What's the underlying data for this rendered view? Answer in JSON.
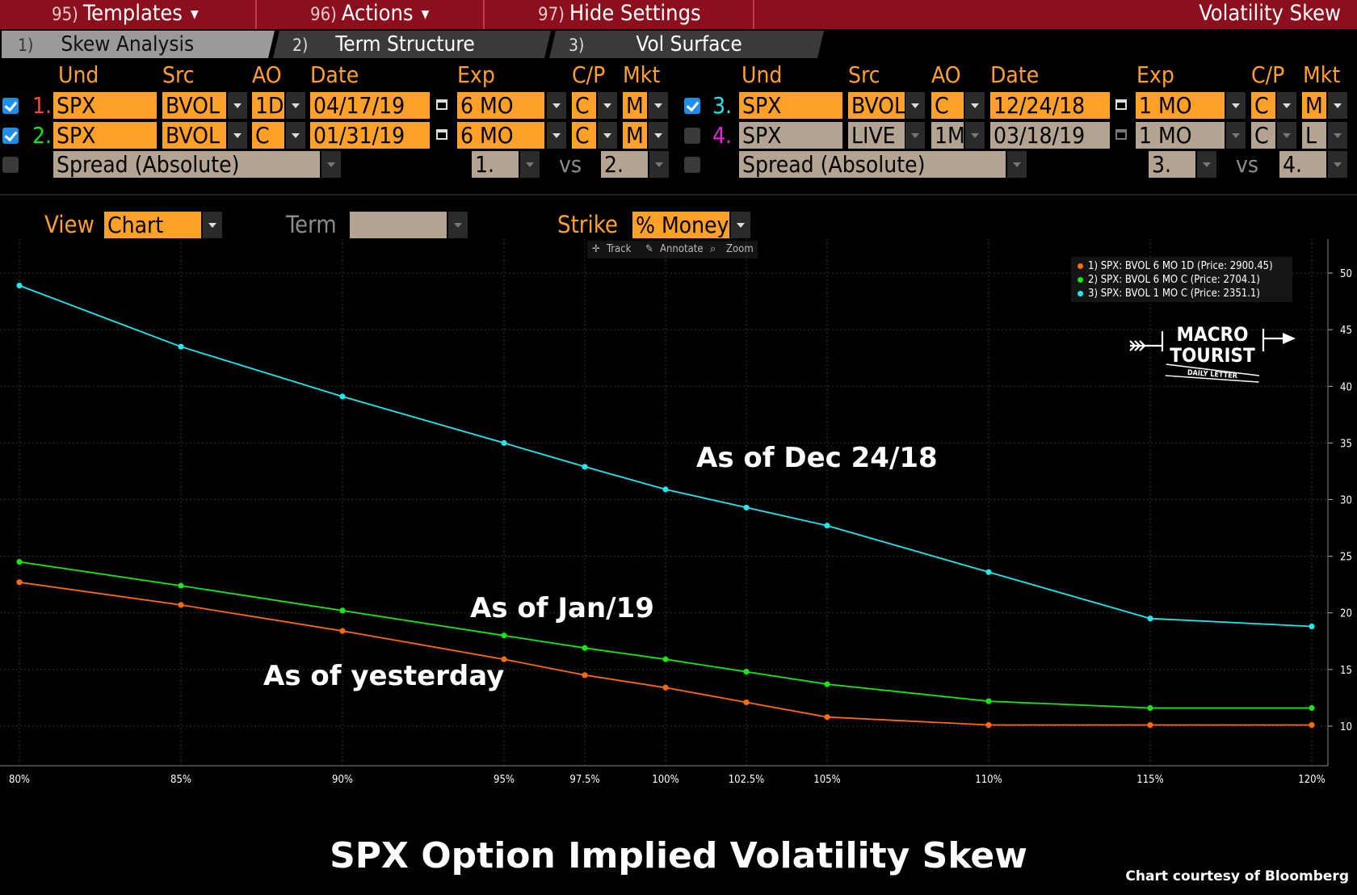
{
  "window": {
    "title": "Volatility Skew"
  },
  "menu": [
    {
      "num": "95)",
      "label": "Templates",
      "caret": "▼"
    },
    {
      "num": "96)",
      "label": "Actions",
      "caret": "▼"
    },
    {
      "num": "97)",
      "label": "Hide Settings",
      "caret": ""
    }
  ],
  "tabs": [
    {
      "num": "1)",
      "label": "Skew Analysis"
    },
    {
      "num": "2)",
      "label": "Term Structure"
    },
    {
      "num": "3)",
      "label": "Vol Surface"
    }
  ],
  "headers": {
    "und": "Und",
    "src": "Src",
    "ao": "AO",
    "date": "Date",
    "exp": "Exp",
    "cp": "C/P",
    "mkt": "Mkt"
  },
  "rows": [
    {
      "num": "1.",
      "und": "SPX",
      "src": "BVOL",
      "ao": "1D",
      "date": "04/17/19",
      "exp": "6 MO",
      "cp": "C",
      "mkt": "M"
    },
    {
      "num": "2.",
      "und": "SPX",
      "src": "BVOL",
      "ao": "C",
      "date": "01/31/19",
      "exp": "6 MO",
      "cp": "C",
      "mkt": "M"
    },
    {
      "num": "3.",
      "und": "SPX",
      "src": "BVOL",
      "ao": "C",
      "date": "12/24/18",
      "exp": "1 MO",
      "cp": "C",
      "mkt": "M"
    },
    {
      "num": "4.",
      "und": "SPX",
      "src": "LIVE",
      "ao": "1M",
      "date": "03/18/19",
      "exp": "1 MO",
      "cp": "C",
      "mkt": "L"
    }
  ],
  "spread": {
    "left": {
      "label": "Spread (Absolute)",
      "a": "1.",
      "vs": "vs",
      "b": "2."
    },
    "right": {
      "label": "Spread (Absolute)",
      "a": "3.",
      "vs": "vs",
      "b": "4."
    }
  },
  "view": {
    "label": "View",
    "value": "Chart"
  },
  "term": {
    "label": "Term",
    "value": ""
  },
  "strike": {
    "label": "Strike",
    "value": "% Money"
  },
  "tools": {
    "track": "Track",
    "annotate": "Annotate",
    "zoom": "Zoom"
  },
  "colors": {
    "s1": "#ff6a10",
    "s2": "#16e616",
    "s3": "#1ee8ee",
    "accent": "#ffa028",
    "bar": "#8b0f1c"
  },
  "logo": {
    "line1": "MACRO",
    "line2": "TOURIST",
    "line3": "DAILY LETTER"
  },
  "annotations": {
    "s3": "As of Dec 24/18",
    "s2": "As of Jan/19",
    "s1": "As of yesterday"
  },
  "caption": {
    "title": "SPX Option Implied Volatility Skew",
    "credit": "Chart courtesy of Bloomberg"
  },
  "chart_data": {
    "type": "line",
    "title": "SPX Option Implied Volatility Skew",
    "xlabel": "% Money",
    "ylabel": "",
    "x": [
      80,
      85,
      90,
      95,
      97.5,
      100,
      102.5,
      105,
      110,
      115,
      120
    ],
    "x_tick_labels": [
      "80%",
      "85%",
      "90%",
      "95%",
      "97.5%",
      "100%",
      "102.5%",
      "105%",
      "110%",
      "115%",
      "120%"
    ],
    "ylim": [
      6.5,
      53
    ],
    "y_ticks": [
      10,
      15,
      20,
      25,
      30,
      35,
      40,
      45,
      50
    ],
    "grid": true,
    "legend_position": "top-right",
    "series": [
      {
        "name": "1) SPX: BVOL 6 MO 1D (Price: 2900.45)",
        "color": "#ff6a10",
        "values": [
          22.7,
          20.7,
          18.4,
          15.9,
          14.5,
          13.4,
          12.1,
          10.8,
          10.1,
          10.1,
          10.1
        ]
      },
      {
        "name": "2) SPX: BVOL 6 MO C (Price: 2704.1)",
        "color": "#16e616",
        "values": [
          24.5,
          22.4,
          20.2,
          18.0,
          16.9,
          15.9,
          14.8,
          13.7,
          12.2,
          11.6,
          11.6
        ]
      },
      {
        "name": "3) SPX: BVOL 1 MO C (Price: 2351.1)",
        "color": "#1ee8ee",
        "values": [
          48.9,
          43.5,
          39.1,
          35.0,
          32.9,
          30.9,
          29.3,
          27.7,
          23.6,
          19.5,
          18.8
        ]
      }
    ]
  }
}
